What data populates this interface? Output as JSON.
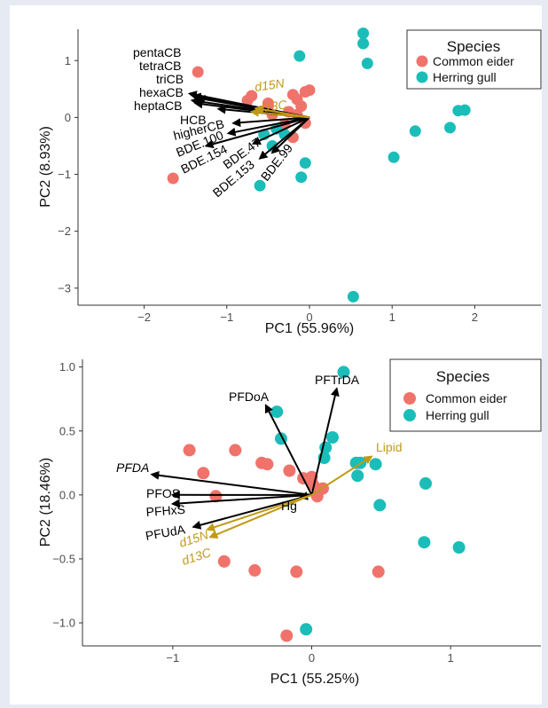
{
  "colors": {
    "eider": "#F0736B",
    "gull": "#1BBDB9",
    "arrow": "#000000",
    "isotope": "#C09A16",
    "axis": "#333333",
    "tick_text": "#4d4d4d"
  },
  "chart_data": [
    {
      "type": "scatter",
      "subtype": "pca_biplot",
      "xlabel": "PC1 (55.96%)",
      "ylabel": "PC2 (8.93%)",
      "xlim": [
        -2.8,
        2.8
      ],
      "ylim": [
        -3.3,
        1.55
      ],
      "xticks": [
        -2,
        -1,
        0,
        1,
        2
      ],
      "yticks": [
        -3,
        -2,
        -1,
        0,
        1
      ],
      "legend": {
        "title": "Species",
        "position": "top-right",
        "entries": [
          "Common eider",
          "Herring gull"
        ]
      },
      "series": [
        {
          "name": "Common eider",
          "color": "#F0736B",
          "points": [
            [
              -1.35,
              0.8
            ],
            [
              -1.65,
              -1.07
            ],
            [
              -0.7,
              0.38
            ],
            [
              -0.75,
              0.3
            ],
            [
              -0.5,
              0.25
            ],
            [
              -0.2,
              0.4
            ],
            [
              -0.15,
              0.32
            ],
            [
              -0.05,
              0.45
            ],
            [
              -0.1,
              0.2
            ],
            [
              0.0,
              0.48
            ],
            [
              -0.25,
              0.1
            ],
            [
              -0.45,
              0.05
            ],
            [
              -0.15,
              0.05
            ],
            [
              -0.3,
              -0.12
            ],
            [
              -0.05,
              -0.1
            ],
            [
              -0.5,
              0.2
            ],
            [
              -0.2,
              -0.35
            ]
          ]
        },
        {
          "name": "Herring gull",
          "color": "#1BBDB9",
          "points": [
            [
              -0.12,
              1.08
            ],
            [
              0.65,
              1.48
            ],
            [
              0.65,
              1.3
            ],
            [
              0.7,
              0.95
            ],
            [
              1.8,
              0.12
            ],
            [
              1.88,
              0.13
            ],
            [
              1.7,
              -0.18
            ],
            [
              1.28,
              -0.24
            ],
            [
              1.02,
              -0.7
            ],
            [
              0.53,
              -3.15
            ],
            [
              -0.05,
              -0.8
            ],
            [
              -0.1,
              -1.05
            ],
            [
              -0.6,
              -1.2
            ],
            [
              -0.45,
              -0.5
            ],
            [
              -0.3,
              -0.3
            ],
            [
              -0.55,
              -0.3
            ],
            [
              -0.4,
              -0.2
            ]
          ]
        }
      ],
      "loadings": [
        {
          "label": "pentaCB",
          "x": -1.45,
          "y": 0.42,
          "color": "black"
        },
        {
          "label": "tetraCB",
          "x": -1.4,
          "y": 0.38,
          "color": "black"
        },
        {
          "label": "triCB",
          "x": -1.35,
          "y": 0.34,
          "color": "black"
        },
        {
          "label": "hexaCB",
          "x": -1.42,
          "y": 0.3,
          "color": "black"
        },
        {
          "label": "heptaCB",
          "x": -1.38,
          "y": 0.25,
          "color": "black"
        },
        {
          "label": "HCB",
          "x": -1.1,
          "y": 0.15,
          "color": "black"
        },
        {
          "label": "higherCB",
          "x": -0.92,
          "y": -0.1,
          "color": "black"
        },
        {
          "label": "BDE.100",
          "x": -0.98,
          "y": -0.28,
          "color": "black"
        },
        {
          "label": "BDE.154",
          "x": -1.25,
          "y": -0.5,
          "color": "black"
        },
        {
          "label": "BDE.47",
          "x": -0.68,
          "y": -0.46,
          "color": "black"
        },
        {
          "label": "BDE.153",
          "x": -0.6,
          "y": -0.72,
          "color": "black"
        },
        {
          "label": "BDE.99",
          "x": -0.45,
          "y": -0.62,
          "color": "black"
        },
        {
          "label": "d15N",
          "x": -0.65,
          "y": 0.16,
          "color": "isotope"
        },
        {
          "label": "d13C",
          "x": -0.7,
          "y": 0.1,
          "color": "isotope"
        }
      ]
    },
    {
      "type": "scatter",
      "subtype": "pca_biplot",
      "xlabel": "PC1 (55.25%)",
      "ylabel": "PC2 (18.46%)",
      "xlim": [
        -1.65,
        1.65
      ],
      "ylim": [
        -1.18,
        1.06
      ],
      "xticks": [
        -1,
        0,
        1
      ],
      "yticks": [
        -1.0,
        -0.5,
        0.0,
        0.5,
        1.0
      ],
      "legend": {
        "title": "Species",
        "position": "top-right",
        "entries": [
          "Common eider",
          "Herring gull"
        ]
      },
      "series": [
        {
          "name": "Common eider",
          "color": "#F0736B",
          "points": [
            [
              -0.88,
              0.35
            ],
            [
              -0.78,
              0.17
            ],
            [
              -0.69,
              -0.01
            ],
            [
              -0.55,
              0.35
            ],
            [
              -0.36,
              0.25
            ],
            [
              -0.32,
              0.24
            ],
            [
              -0.16,
              0.19
            ],
            [
              -0.06,
              0.13
            ],
            [
              0.0,
              0.14
            ],
            [
              0.01,
              0.08
            ],
            [
              0.04,
              -0.01
            ],
            [
              0.08,
              0.05
            ],
            [
              -0.63,
              -0.52
            ],
            [
              -0.41,
              -0.59
            ],
            [
              -0.11,
              -0.6
            ],
            [
              -0.18,
              -1.1
            ],
            [
              0.48,
              -0.6
            ]
          ]
        },
        {
          "name": "Herring gull",
          "color": "#1BBDB9",
          "points": [
            [
              0.23,
              0.96
            ],
            [
              -0.25,
              0.65
            ],
            [
              -0.22,
              0.44
            ],
            [
              0.15,
              0.45
            ],
            [
              0.1,
              0.37
            ],
            [
              0.09,
              0.29
            ],
            [
              0.32,
              0.25
            ],
            [
              0.35,
              0.25
            ],
            [
              0.46,
              0.24
            ],
            [
              0.33,
              0.15
            ],
            [
              0.82,
              0.09
            ],
            [
              0.49,
              -0.08
            ],
            [
              0.81,
              -0.37
            ],
            [
              1.06,
              -0.41
            ],
            [
              -0.04,
              -1.05
            ]
          ]
        }
      ],
      "loadings": [
        {
          "label": "PFTrDA",
          "x": 0.18,
          "y": 0.83,
          "color": "black"
        },
        {
          "label": "PFDoA",
          "x": -0.33,
          "y": 0.7,
          "color": "black"
        },
        {
          "label": "PFDA",
          "x": -1.15,
          "y": 0.16,
          "color": "black"
        },
        {
          "label": "PFOS",
          "x": -1.0,
          "y": 0.0,
          "color": "black"
        },
        {
          "label": "PFHxS",
          "x": -1.0,
          "y": -0.07,
          "color": "black"
        },
        {
          "label": "PFUdA",
          "x": -0.85,
          "y": -0.25,
          "color": "black"
        },
        {
          "label": "Hg",
          "x": -0.08,
          "y": -0.02,
          "color": "black"
        },
        {
          "label": "Lipid",
          "x": 0.43,
          "y": 0.3,
          "color": "isotope"
        },
        {
          "label": "d15N",
          "x": -0.75,
          "y": -0.27,
          "color": "isotope"
        },
        {
          "label": "d13C",
          "x": -0.73,
          "y": -0.33,
          "color": "isotope"
        }
      ]
    }
  ]
}
